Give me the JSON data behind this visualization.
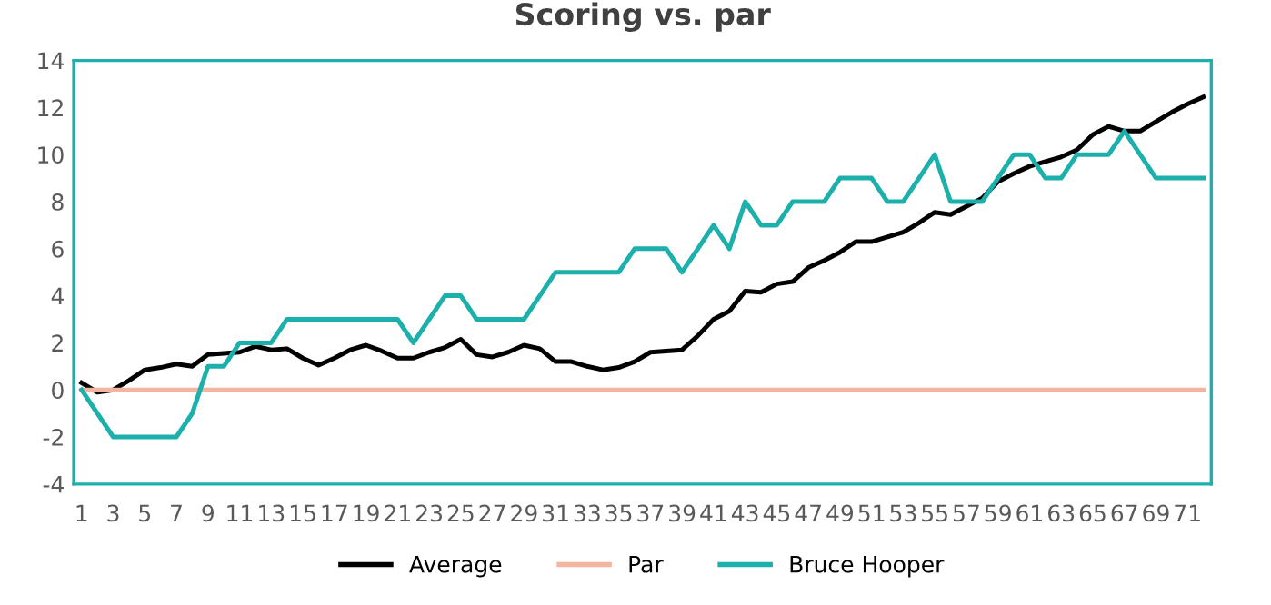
{
  "chart_data": {
    "type": "line",
    "title": "Scoring vs. par",
    "categories": [
      "1",
      null,
      "3",
      null,
      "5",
      null,
      "7",
      null,
      "9",
      null,
      "11",
      null,
      "13",
      null,
      "15",
      null,
      "17",
      null,
      "19",
      null,
      "21",
      null,
      "23",
      null,
      "25",
      null,
      "27",
      null,
      "29",
      null,
      "31",
      null,
      "33",
      null,
      "35",
      null,
      "37",
      null,
      "39",
      null,
      "41",
      null,
      "43",
      null,
      "45",
      null,
      "47",
      null,
      "49",
      null,
      "51",
      null,
      "53",
      null,
      "55",
      null,
      "57",
      null,
      "59",
      null,
      "61",
      null,
      "63",
      null,
      "65",
      null,
      "67",
      null,
      "69",
      null,
      "71",
      null
    ],
    "series": [
      {
        "name": "Average",
        "color": "#000000",
        "values": [
          0.3,
          -0.1,
          0.0,
          0.4,
          0.85,
          0.95,
          1.1,
          1.0,
          1.5,
          1.55,
          1.6,
          1.85,
          1.7,
          1.75,
          1.35,
          1.05,
          1.35,
          1.7,
          1.9,
          1.65,
          1.35,
          1.35,
          1.6,
          1.8,
          2.15,
          1.5,
          1.4,
          1.6,
          1.9,
          1.75,
          1.2,
          1.2,
          1.0,
          0.85,
          0.95,
          1.2,
          1.6,
          1.65,
          1.7,
          2.3,
          3.0,
          3.35,
          4.2,
          4.15,
          4.5,
          4.6,
          5.2,
          5.5,
          5.85,
          6.3,
          6.3,
          6.5,
          6.7,
          7.1,
          7.55,
          7.45,
          7.8,
          8.15,
          8.85,
          9.2,
          9.5,
          9.7,
          9.9,
          10.2,
          10.85,
          11.2,
          11.0,
          11.0,
          11.4,
          11.8,
          12.15,
          12.45
        ]
      },
      {
        "name": "Par",
        "color": "#f4b4a0",
        "values": [
          0,
          0,
          0,
          0,
          0,
          0,
          0,
          0,
          0,
          0,
          0,
          0,
          0,
          0,
          0,
          0,
          0,
          0,
          0,
          0,
          0,
          0,
          0,
          0,
          0,
          0,
          0,
          0,
          0,
          0,
          0,
          0,
          0,
          0,
          0,
          0,
          0,
          0,
          0,
          0,
          0,
          0,
          0,
          0,
          0,
          0,
          0,
          0,
          0,
          0,
          0,
          0,
          0,
          0,
          0,
          0,
          0,
          0,
          0,
          0,
          0,
          0,
          0,
          0,
          0,
          0,
          0,
          0,
          0,
          0,
          0,
          0
        ]
      },
      {
        "name": "Bruce Hooper",
        "color": "#1cb0ac",
        "values": [
          0,
          -1,
          -2,
          -2,
          -2,
          -2,
          -2,
          -1,
          1,
          1,
          2,
          2,
          2,
          3,
          3,
          3,
          3,
          3,
          3,
          3,
          3,
          2,
          3,
          4,
          4,
          3,
          3,
          3,
          3,
          4,
          5,
          5,
          5,
          5,
          5,
          6,
          6,
          6,
          5,
          6,
          7,
          6,
          8,
          7,
          7,
          8,
          8,
          8,
          9,
          9,
          9,
          8,
          8,
          9,
          10,
          8,
          8,
          8,
          9,
          10,
          10,
          9,
          9,
          10,
          10,
          10,
          11,
          10,
          9,
          9,
          9,
          9
        ]
      }
    ],
    "ylim": [
      -4,
      14
    ],
    "yticks": [
      -4,
      -2,
      0,
      2,
      4,
      6,
      8,
      10,
      12,
      14
    ],
    "grid": false,
    "legend": "bottom",
    "marker": "none",
    "line_style": "solid"
  }
}
